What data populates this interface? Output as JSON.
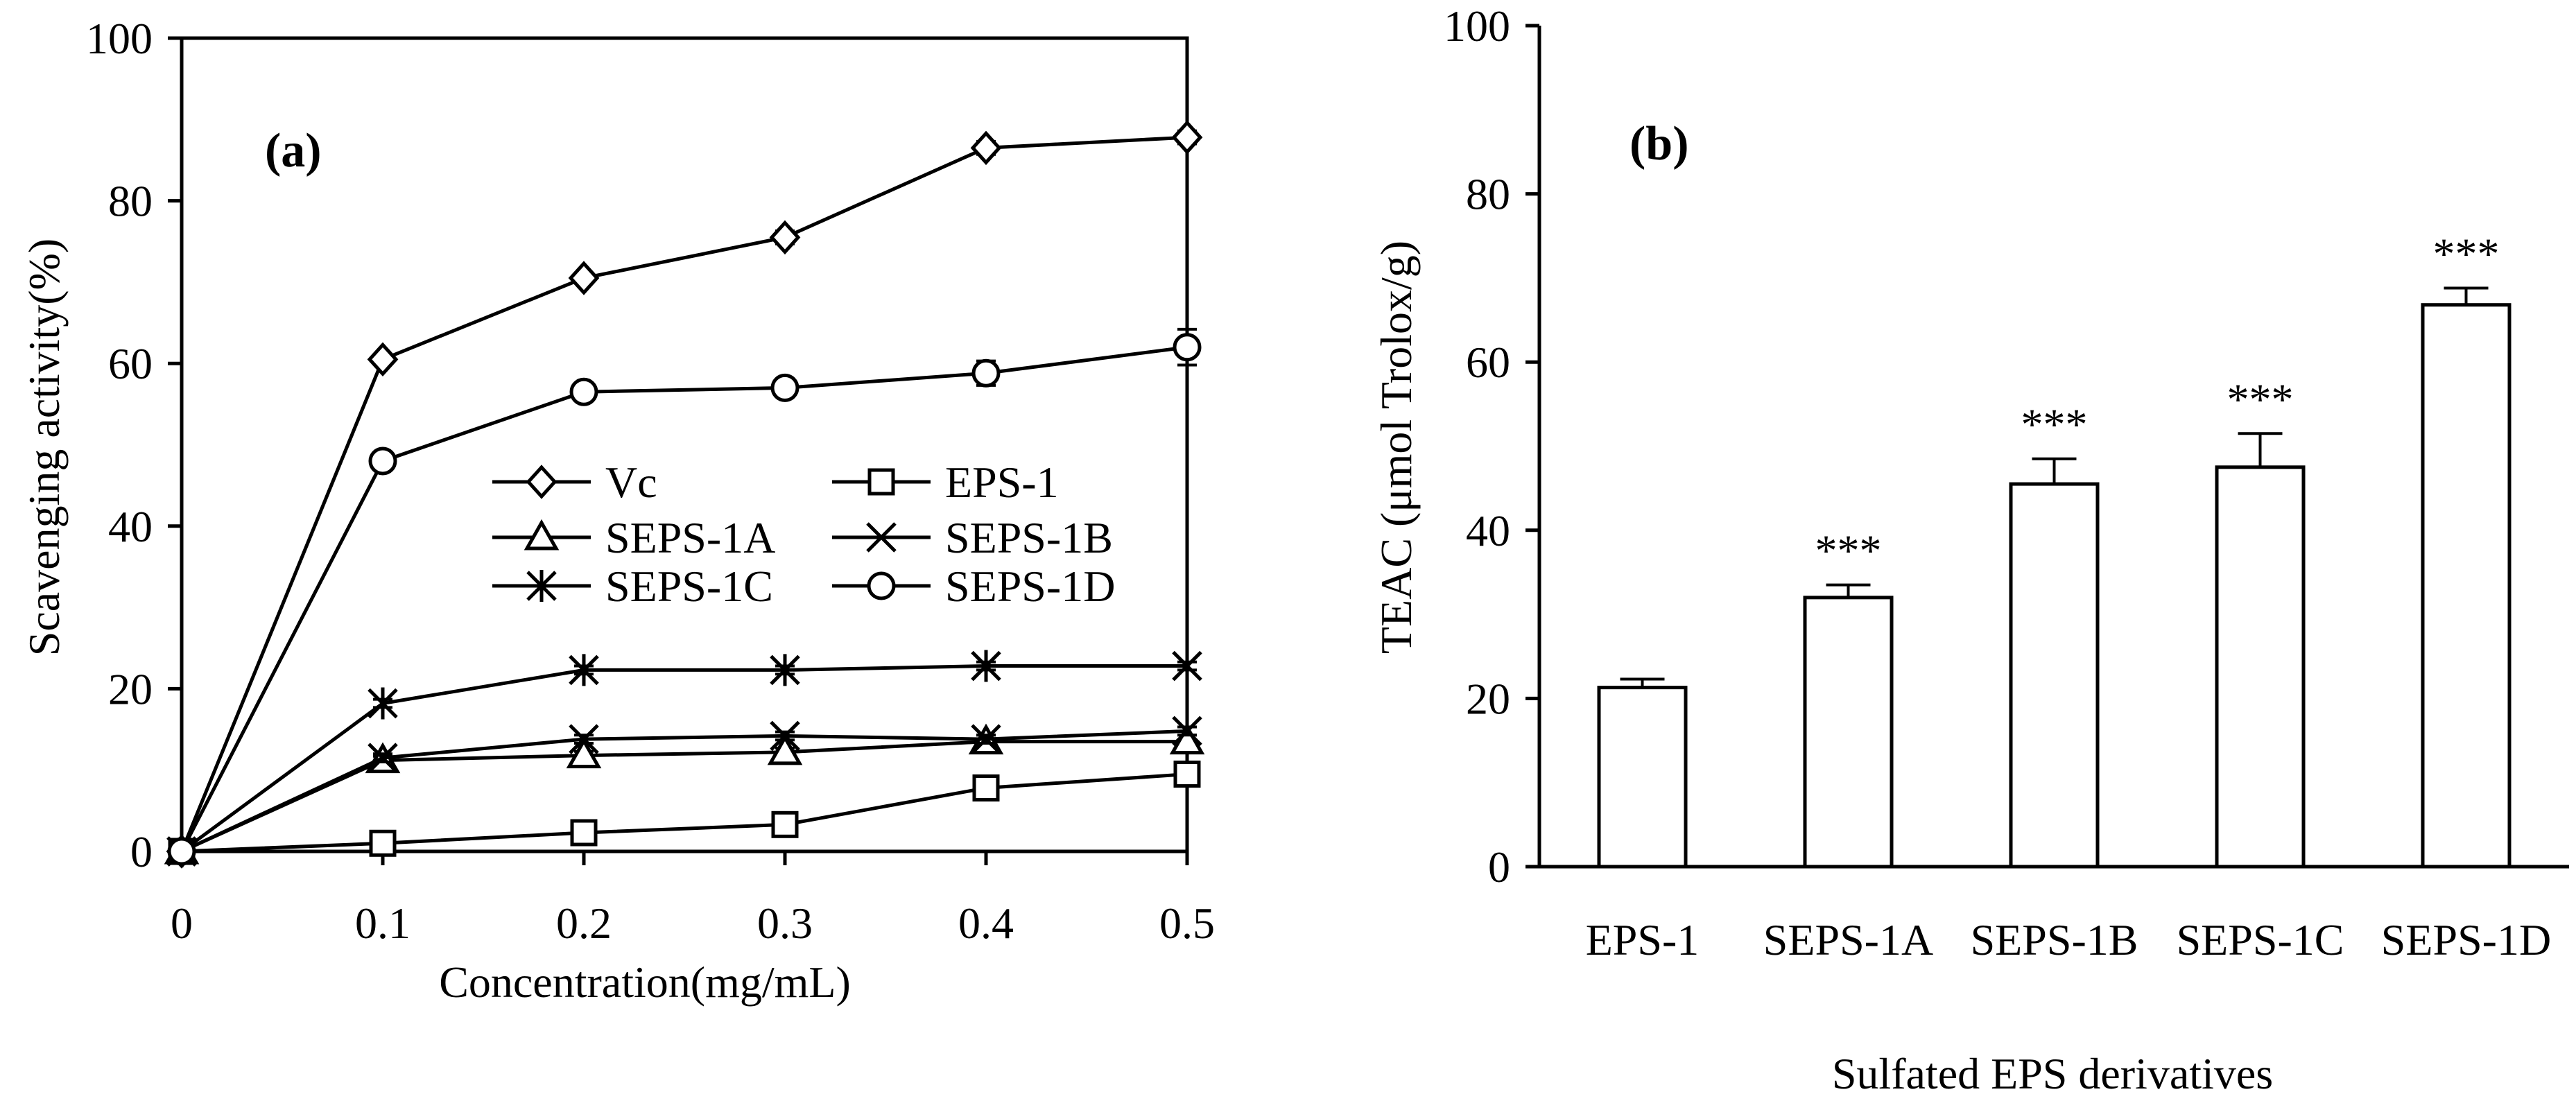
{
  "chart_data": [
    {
      "type": "line",
      "panel_label": "(a)",
      "xlabel": "Concentration(mg/mL)",
      "ylabel": "Scavenging activity(%)",
      "x": [
        0,
        0.1,
        0.2,
        0.3,
        0.4,
        0.5
      ],
      "x_tick_labels": [
        "0",
        "0.1",
        "0.2",
        "0.3",
        "0.4",
        "0.5"
      ],
      "xlim": [
        0,
        0.5
      ],
      "ylim": [
        0,
        100
      ],
      "y_ticks": [
        0,
        20,
        40,
        60,
        80,
        100
      ],
      "grid": false,
      "legend_position": "center-right",
      "series": [
        {
          "name": "Vc",
          "marker": "diamond",
          "values": [
            0,
            60.5,
            70.5,
            75.5,
            86.5,
            87.8
          ],
          "errors": [
            0,
            0.5,
            0.5,
            0.8,
            0.8,
            0.8
          ]
        },
        {
          "name": "EPS-1",
          "marker": "square",
          "values": [
            0,
            1,
            2.3,
            3.3,
            7.8,
            9.5
          ],
          "errors": [
            0,
            0.3,
            0.3,
            0.3,
            0.8,
            1.2
          ]
        },
        {
          "name": "SEPS-1A",
          "marker": "triangle",
          "values": [
            0,
            11.2,
            11.8,
            12.2,
            13.5,
            13.5
          ],
          "errors": [
            0,
            0.5,
            0.5,
            0.5,
            0.8,
            0.8
          ]
        },
        {
          "name": "SEPS-1B",
          "marker": "x",
          "values": [
            0,
            11.5,
            13.8,
            14.2,
            13.8,
            14.8
          ],
          "errors": [
            0,
            0.5,
            0.5,
            0.5,
            0.5,
            0.5
          ]
        },
        {
          "name": "SEPS-1C",
          "marker": "asterisk",
          "values": [
            0,
            18.2,
            22.3,
            22.3,
            22.8,
            22.8
          ],
          "errors": [
            0,
            0.5,
            0.5,
            0.5,
            0.5,
            0.5
          ]
        },
        {
          "name": "SEPS-1D",
          "marker": "circle",
          "values": [
            0,
            48,
            56.5,
            57,
            58.8,
            62
          ],
          "errors": [
            0,
            0.8,
            0.8,
            0.8,
            1.5,
            2.2
          ]
        }
      ]
    },
    {
      "type": "bar",
      "panel_label": "(b)",
      "xlabel": "Sulfated EPS derivatives",
      "ylabel": "TEAC (μmol Trolox/g)",
      "categories": [
        "EPS-1",
        "SEPS-1A",
        "SEPS-1B",
        "SEPS-1C",
        "SEPS-1D"
      ],
      "values": [
        21.3,
        32,
        45.5,
        47.5,
        66.8
      ],
      "errors": [
        1,
        1.5,
        3,
        4,
        2
      ],
      "annotations": [
        "",
        "***",
        "***",
        "***",
        "***"
      ],
      "ylim": [
        0,
        100
      ],
      "y_ticks": [
        0,
        20,
        40,
        60,
        80,
        100
      ],
      "grid": false
    }
  ]
}
